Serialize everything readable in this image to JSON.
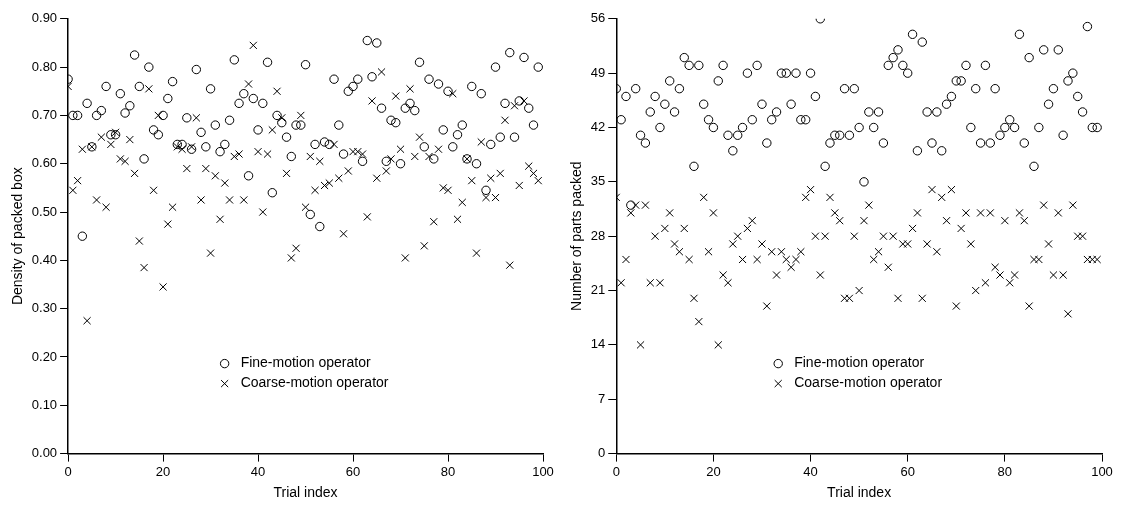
{
  "chart_data": [
    {
      "type": "scatter",
      "xlabel": "Trial index",
      "ylabel": "Density of packed box",
      "xlim": [
        0,
        100
      ],
      "xticks": [
        0,
        20,
        40,
        60,
        80,
        100
      ],
      "ylim": [
        0,
        0.9
      ],
      "yticks": [
        {
          "value": 0,
          "label": "0.00"
        },
        {
          "value": 0.1,
          "label": "0.10"
        },
        {
          "value": 0.2,
          "label": "0.20"
        },
        {
          "value": 0.3,
          "label": "0.30"
        },
        {
          "value": 0.4,
          "label": "0.40"
        },
        {
          "value": 0.5,
          "label": "0.50"
        },
        {
          "value": 0.6,
          "label": "0.60"
        },
        {
          "value": 0.7,
          "label": "0.70"
        },
        {
          "value": 0.8,
          "label": "0.80"
        },
        {
          "value": 0.9,
          "label": "0.90"
        }
      ],
      "legend": "bottom",
      "grid": false,
      "x": [
        0,
        1,
        2,
        3,
        4,
        5,
        6,
        7,
        8,
        9,
        10,
        11,
        12,
        13,
        14,
        15,
        16,
        17,
        18,
        19,
        20,
        21,
        22,
        23,
        24,
        25,
        26,
        27,
        28,
        29,
        30,
        31,
        32,
        33,
        34,
        35,
        36,
        37,
        38,
        39,
        40,
        41,
        42,
        43,
        44,
        45,
        46,
        47,
        48,
        49,
        50,
        51,
        52,
        53,
        54,
        55,
        56,
        57,
        58,
        59,
        60,
        61,
        62,
        63,
        64,
        65,
        66,
        67,
        68,
        69,
        70,
        71,
        72,
        73,
        74,
        75,
        76,
        77,
        78,
        79,
        80,
        81,
        82,
        83,
        84,
        85,
        86,
        87,
        88,
        89,
        90,
        91,
        92,
        93,
        94,
        95,
        96,
        97,
        98,
        99
      ],
      "series": [
        {
          "name": "Fine-motion operator",
          "color": "#000000",
          "marker": "circle",
          "values": [
            0.775,
            0.7,
            0.7,
            0.45,
            0.725,
            0.635,
            0.7,
            0.71,
            0.76,
            0.66,
            0.66,
            0.745,
            0.705,
            0.72,
            0.825,
            0.76,
            0.61,
            0.8,
            0.67,
            0.66,
            0.7,
            0.735,
            0.77,
            0.64,
            0.64,
            0.695,
            0.63,
            0.795,
            0.665,
            0.635,
            0.755,
            0.68,
            0.625,
            0.64,
            0.69,
            0.815,
            0.725,
            0.745,
            0.575,
            0.735,
            0.67,
            0.725,
            0.81,
            0.54,
            0.7,
            0.685,
            0.655,
            0.615,
            0.68,
            0.68,
            0.805,
            0.495,
            0.64,
            0.47,
            0.645,
            0.64,
            0.775,
            0.68,
            0.62,
            0.75,
            0.76,
            0.775,
            0.605,
            0.855,
            0.78,
            0.85,
            0.715,
            0.605,
            0.69,
            0.685,
            0.6,
            0.715,
            0.725,
            0.71,
            0.81,
            0.635,
            0.775,
            0.61,
            0.765,
            0.67,
            0.75,
            0.635,
            0.66,
            0.68,
            0.61,
            0.76,
            0.6,
            0.745,
            0.545,
            0.64,
            0.8,
            0.655,
            0.725,
            0.83,
            0.655,
            0.73,
            0.82,
            0.715,
            0.68,
            0.8
          ]
        },
        {
          "name": "Coarse-motion operator",
          "color": "#000000",
          "marker": "cross",
          "values": [
            0.76,
            0.545,
            0.565,
            0.63,
            0.275,
            0.635,
            0.525,
            0.655,
            0.51,
            0.64,
            0.665,
            0.61,
            0.605,
            0.65,
            0.58,
            0.44,
            0.385,
            0.755,
            0.545,
            0.7,
            0.345,
            0.475,
            0.51,
            0.635,
            0.63,
            0.59,
            0.635,
            0.695,
            0.525,
            0.59,
            0.415,
            0.575,
            0.485,
            0.56,
            0.525,
            0.615,
            0.62,
            0.525,
            0.765,
            0.845,
            0.625,
            0.5,
            0.62,
            0.67,
            0.75,
            0.695,
            0.58,
            0.405,
            0.425,
            0.7,
            0.51,
            0.615,
            0.545,
            0.605,
            0.555,
            0.56,
            0.64,
            0.57,
            0.455,
            0.585,
            0.625,
            0.625,
            0.62,
            0.49,
            0.73,
            0.57,
            0.79,
            0.585,
            0.61,
            0.74,
            0.63,
            0.405,
            0.755,
            0.615,
            0.655,
            0.43,
            0.615,
            0.48,
            0.63,
            0.55,
            0.545,
            0.745,
            0.485,
            0.52,
            0.61,
            0.565,
            0.415,
            0.645,
            0.53,
            0.57,
            0.53,
            0.58,
            0.69,
            0.39,
            0.72,
            0.555,
            0.73,
            0.595,
            0.58,
            0.565
          ]
        }
      ]
    },
    {
      "type": "scatter",
      "xlabel": "Trial index",
      "ylabel": "Number of parts packed",
      "xlim": [
        0,
        100
      ],
      "xticks": [
        0,
        20,
        40,
        60,
        80,
        100
      ],
      "ylim": [
        0,
        56
      ],
      "yticks": [
        0,
        7,
        14,
        21,
        28,
        35,
        42,
        49,
        56
      ],
      "legend": "bottom",
      "grid": false,
      "x": [
        0,
        1,
        2,
        3,
        4,
        5,
        6,
        7,
        8,
        9,
        10,
        11,
        12,
        13,
        14,
        15,
        16,
        17,
        18,
        19,
        20,
        21,
        22,
        23,
        24,
        25,
        26,
        27,
        28,
        29,
        30,
        31,
        32,
        33,
        34,
        35,
        36,
        37,
        38,
        39,
        40,
        41,
        42,
        43,
        44,
        45,
        46,
        47,
        48,
        49,
        50,
        51,
        52,
        53,
        54,
        55,
        56,
        57,
        58,
        59,
        60,
        61,
        62,
        63,
        64,
        65,
        66,
        67,
        68,
        69,
        70,
        71,
        72,
        73,
        74,
        75,
        76,
        77,
        78,
        79,
        80,
        81,
        82,
        83,
        84,
        85,
        86,
        87,
        88,
        89,
        90,
        91,
        92,
        93,
        94,
        95,
        96,
        97,
        98,
        99
      ],
      "series": [
        {
          "name": "Fine-motion operator",
          "color": "#000000",
          "marker": "circle",
          "values": [
            47,
            43,
            46,
            32,
            47,
            41,
            40,
            44,
            46,
            42,
            45,
            48,
            44,
            47,
            51,
            50,
            37,
            50,
            45,
            43,
            42,
            48,
            50,
            41,
            39,
            41,
            42,
            49,
            43,
            50,
            45,
            40,
            43,
            44,
            49,
            49,
            45,
            49,
            43,
            43,
            49,
            46,
            56,
            37,
            40,
            41,
            41,
            47,
            41,
            47,
            42,
            35,
            44,
            42,
            44,
            40,
            50,
            51,
            52,
            50,
            49,
            54,
            39,
            53,
            44,
            40,
            44,
            39,
            45,
            46,
            48,
            48,
            50,
            42,
            47,
            40,
            50,
            40,
            47,
            41,
            42,
            43,
            42,
            54,
            40,
            51,
            37,
            42,
            52,
            45,
            47,
            52,
            41,
            48,
            49,
            46,
            44,
            55,
            42,
            42
          ]
        },
        {
          "name": "Coarse-motion operator",
          "color": "#000000",
          "marker": "cross",
          "values": [
            33,
            22,
            25,
            31,
            32,
            14,
            32,
            22,
            28,
            22,
            29,
            31,
            27,
            26,
            29,
            25,
            20,
            17,
            33,
            26,
            31,
            14,
            23,
            22,
            27,
            28,
            25,
            29,
            30,
            25,
            27,
            19,
            26,
            23,
            26,
            25,
            24,
            25,
            26,
            33,
            34,
            28,
            23,
            28,
            33,
            31,
            30,
            20,
            20,
            28,
            21,
            30,
            32,
            25,
            26,
            28,
            24,
            28,
            20,
            27,
            27,
            29,
            31,
            20,
            27,
            34,
            26,
            33,
            30,
            34,
            19,
            29,
            31,
            27,
            21,
            31,
            22,
            31,
            24,
            23,
            30,
            22,
            23,
            31,
            30,
            19,
            25,
            25,
            32,
            27,
            23,
            31,
            23,
            18,
            32,
            28,
            28,
            25,
            25,
            25
          ]
        }
      ]
    }
  ]
}
